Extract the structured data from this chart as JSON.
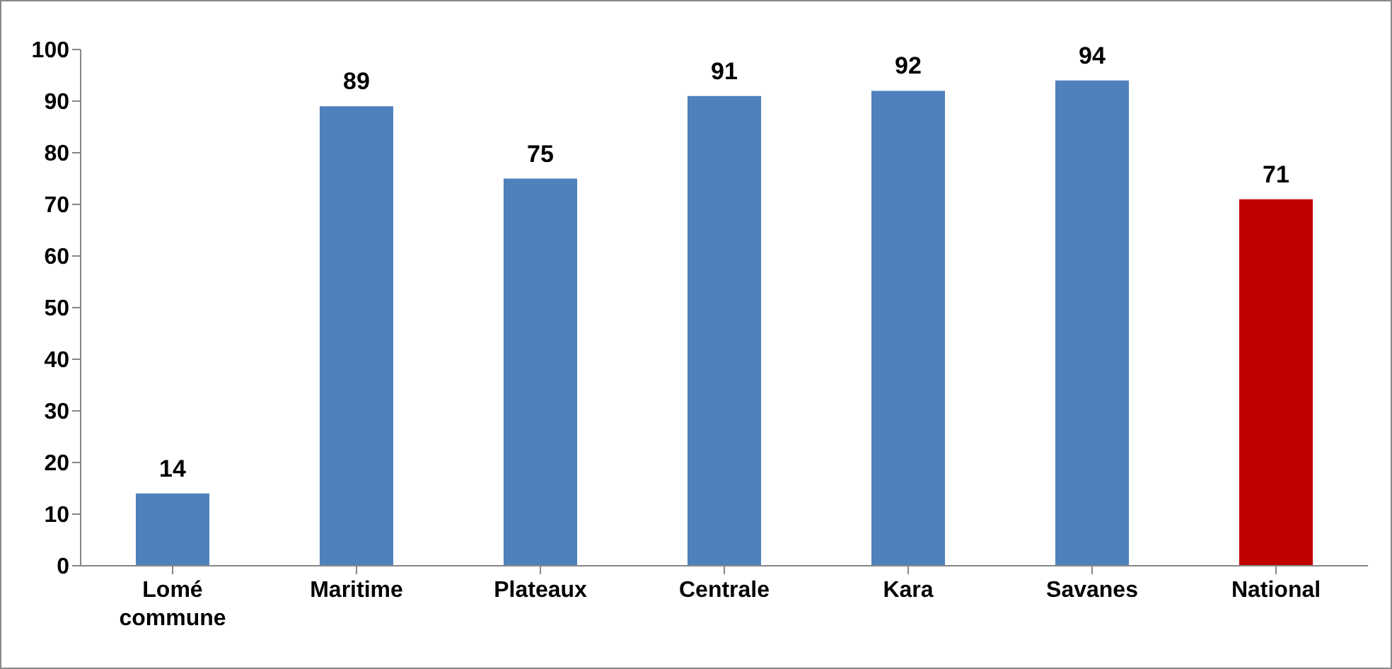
{
  "chart_data": {
    "type": "bar",
    "categories": [
      "Lomé commune",
      "Maritime",
      "Plateaux",
      "Centrale",
      "Kara",
      "Savanes",
      "National"
    ],
    "values": [
      14,
      89,
      75,
      91,
      92,
      94,
      71
    ],
    "colors": [
      "#4f81bd",
      "#4f81bd",
      "#4f81bd",
      "#4f81bd",
      "#4f81bd",
      "#4f81bd",
      "#c00000"
    ],
    "ylim": [
      0,
      100
    ],
    "yticks": [
      0,
      10,
      20,
      30,
      40,
      50,
      60,
      70,
      80,
      90,
      100
    ],
    "grid": false,
    "data_labels": true
  }
}
